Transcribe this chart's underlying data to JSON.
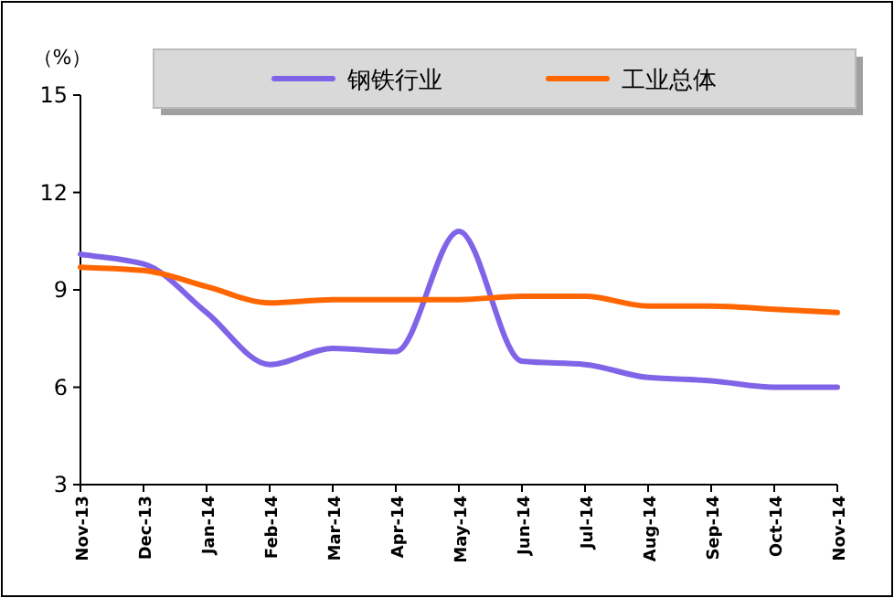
{
  "chart_data": {
    "type": "line",
    "ylabel": "（%）",
    "categories": [
      "Nov-13",
      "Dec-13",
      "Jan-14",
      "Feb-14",
      "Mar-14",
      "Apr-14",
      "May-14",
      "Jun-14",
      "Jul-14",
      "Aug-14",
      "Sep-14",
      "Oct-14",
      "Nov-14"
    ],
    "series": [
      {
        "name": "钢铁行业",
        "color": "#8064e8",
        "values": [
          10.1,
          9.8,
          8.3,
          6.7,
          7.2,
          7.1,
          10.8,
          6.8,
          6.7,
          6.3,
          6.2,
          6.0,
          6.0
        ]
      },
      {
        "name": "工业总体",
        "color": "#ff6600",
        "values": [
          9.7,
          9.6,
          9.1,
          8.6,
          8.7,
          8.7,
          8.7,
          8.8,
          8.8,
          8.5,
          8.5,
          8.4,
          8.3
        ]
      }
    ],
    "ylim": [
      3,
      15
    ],
    "yticks": [
      3,
      6,
      9,
      12,
      15
    ],
    "legend": "top",
    "grid": false,
    "marker": "none",
    "line_style": "solid"
  }
}
